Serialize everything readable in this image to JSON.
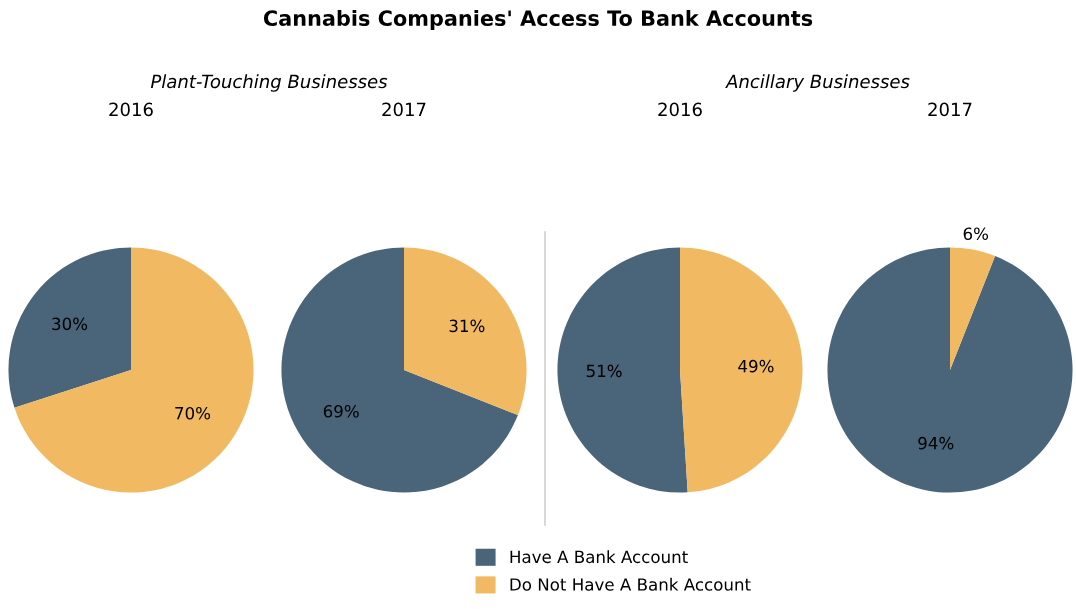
{
  "chart_data": [
    {
      "type": "pie",
      "title": "2016",
      "subtitle": "Plant-Touching Businesses",
      "annotations": [
        "Cannabis Companies' Access To Bank Accounts"
      ],
      "categories": [
        "Have A Bank Account",
        "Do Not Have A Bank Account"
      ],
      "values": [
        30,
        70
      ],
      "value_labels": [
        "30%",
        "70%"
      ],
      "colors": [
        "#4a6479",
        "#f0b962"
      ],
      "legend": "bottom"
    },
    {
      "type": "pie",
      "title": "2017",
      "categories": [
        null,
        null
      ],
      "values": [
        69,
        31
      ],
      "value_labels": [
        "69%",
        "31%"
      ],
      "colors": [
        "#4a6479",
        "#f0b962"
      ]
    },
    {
      "type": "pie",
      "title": "2016",
      "subtitle": "Ancillary Businesses",
      "categories": [
        null,
        null
      ],
      "values": [
        51,
        49
      ],
      "value_labels": [
        "51%",
        "49%"
      ],
      "colors": [
        "#4a6479",
        "#f0b962"
      ]
    },
    {
      "type": "pie",
      "title": "2017",
      "categories": [
        null,
        null
      ],
      "values": [
        94,
        6
      ],
      "value_labels": [
        "94%",
        "6%"
      ],
      "colors": [
        "#4a6479",
        "#f0b962"
      ]
    }
  ]
}
